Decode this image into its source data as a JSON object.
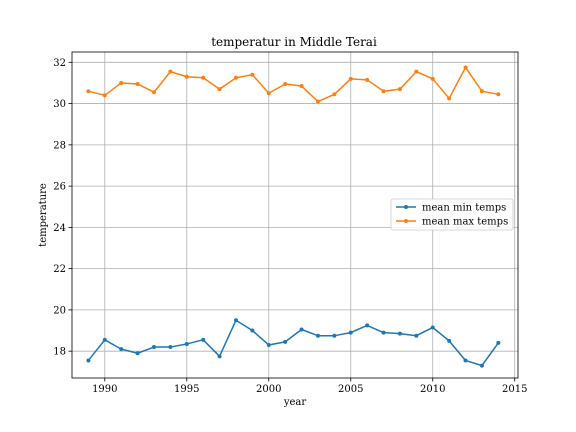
{
  "chart_data": {
    "type": "line",
    "title": "temperatur in Middle Terai",
    "xlabel": "year",
    "ylabel": "temperature",
    "xlim": [
      1988,
      2015.2
    ],
    "ylim": [
      16.7,
      32.5
    ],
    "xticks": [
      1990,
      1995,
      2000,
      2005,
      2010,
      2015
    ],
    "yticks": [
      18,
      20,
      22,
      24,
      26,
      28,
      30,
      32
    ],
    "grid": true,
    "legend_position": "center-right",
    "x": [
      1989,
      1990,
      1991,
      1992,
      1993,
      1994,
      1995,
      1996,
      1997,
      1998,
      1999,
      2000,
      2001,
      2002,
      2003,
      2004,
      2005,
      2006,
      2007,
      2008,
      2009,
      2010,
      2011,
      2012,
      2013,
      2014
    ],
    "series": [
      {
        "name": "mean min temps",
        "color": "#1f77b4",
        "values": [
          17.55,
          18.55,
          18.1,
          17.9,
          18.2,
          18.2,
          18.35,
          18.55,
          17.75,
          19.5,
          19.0,
          18.3,
          18.45,
          19.05,
          18.75,
          18.75,
          18.9,
          19.25,
          18.9,
          18.85,
          18.75,
          19.15,
          18.5,
          17.55,
          17.3,
          18.4
        ]
      },
      {
        "name": "mean max temps",
        "color": "#ff7f0e",
        "values": [
          30.6,
          30.4,
          31.0,
          30.95,
          30.55,
          31.55,
          31.3,
          31.25,
          30.7,
          31.25,
          31.4,
          30.5,
          30.95,
          30.85,
          30.1,
          30.45,
          31.2,
          31.15,
          30.6,
          30.7,
          31.55,
          31.2,
          30.25,
          31.75,
          30.6,
          30.45
        ]
      }
    ]
  }
}
